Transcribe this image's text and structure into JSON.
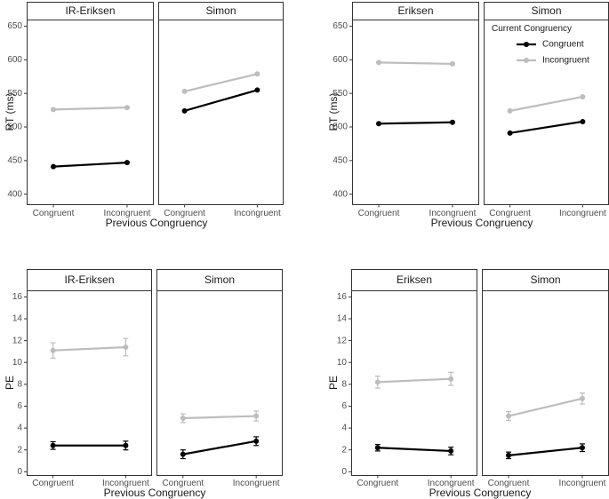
{
  "chart_data": [
    {
      "type": "line",
      "ylabel": "RT (ms)",
      "xlabel": "Previous Congruency",
      "ylim": [
        385,
        660
      ],
      "yticks": [
        400,
        450,
        500,
        550,
        600,
        650
      ],
      "panels": [
        {
          "title": "IR-Eriksen",
          "categories": [
            "Congruent",
            "Incongruent"
          ],
          "series": [
            {
              "series_key": "congruent",
              "values": [
                441,
                447
              ]
            },
            {
              "series_key": "incongruent",
              "values": [
                526,
                529
              ]
            }
          ]
        },
        {
          "title": "Simon",
          "categories": [
            "Congruent",
            "Incongruent"
          ],
          "series": [
            {
              "series_key": "congruent",
              "values": [
                524,
                555
              ]
            },
            {
              "series_key": "incongruent",
              "values": [
                553,
                579
              ]
            }
          ]
        }
      ]
    },
    {
      "type": "line",
      "ylabel": "RT (ms)",
      "xlabel": "Previous Congruency",
      "ylim": [
        385,
        660
      ],
      "yticks": [
        400,
        450,
        500,
        550,
        600,
        650
      ],
      "legend": {
        "title": "Current Congruency",
        "placement": "inside top-right",
        "entries": [
          {
            "series_key": "congruent",
            "label": "Congruent"
          },
          {
            "series_key": "incongruent",
            "label": "Incongruent"
          }
        ]
      },
      "panels": [
        {
          "title": "Eriksen",
          "categories": [
            "Congruent",
            "Incongruent"
          ],
          "series": [
            {
              "series_key": "congruent",
              "values": [
                505,
                507
              ]
            },
            {
              "series_key": "incongruent",
              "values": [
                596,
                594
              ]
            }
          ]
        },
        {
          "title": "Simon",
          "categories": [
            "Congruent",
            "Incongruent"
          ],
          "series": [
            {
              "series_key": "congruent",
              "values": [
                491,
                508
              ]
            },
            {
              "series_key": "incongruent",
              "values": [
                524,
                545
              ]
            }
          ]
        }
      ]
    },
    {
      "type": "line",
      "ylabel": "PE",
      "xlabel": "Previous Congruency",
      "ylim": [
        -0.3,
        16.6
      ],
      "yticks": [
        0,
        2,
        4,
        6,
        8,
        10,
        12,
        14,
        16
      ],
      "panels": [
        {
          "title": "IR-Eriksen",
          "categories": [
            "Congruent",
            "Incongruent"
          ],
          "series": [
            {
              "series_key": "congruent",
              "values": [
                2.4,
                2.4
              ],
              "errors": [
                0.35,
                0.4
              ]
            },
            {
              "series_key": "incongruent",
              "values": [
                11.1,
                11.4
              ],
              "errors": [
                0.7,
                0.8
              ]
            }
          ]
        },
        {
          "title": "Simon",
          "categories": [
            "Congruent",
            "Incongruent"
          ],
          "series": [
            {
              "series_key": "congruent",
              "values": [
                1.6,
                2.8
              ],
              "errors": [
                0.4,
                0.4
              ]
            },
            {
              "series_key": "incongruent",
              "values": [
                4.9,
                5.1
              ],
              "errors": [
                0.4,
                0.45
              ]
            }
          ]
        }
      ]
    },
    {
      "type": "line",
      "ylabel": "PE",
      "xlabel": "Previous Congruency",
      "ylim": [
        -0.3,
        16.6
      ],
      "yticks": [
        0,
        2,
        4,
        6,
        8,
        10,
        12,
        14,
        16
      ],
      "panels": [
        {
          "title": "Eriksen",
          "categories": [
            "Congruent",
            "Incongruent"
          ],
          "series": [
            {
              "series_key": "congruent",
              "values": [
                2.2,
                1.9
              ],
              "errors": [
                0.3,
                0.35
              ]
            },
            {
              "series_key": "incongruent",
              "values": [
                8.2,
                8.5
              ],
              "errors": [
                0.55,
                0.6
              ]
            }
          ]
        },
        {
          "title": "Simon",
          "categories": [
            "Congruent",
            "Incongruent"
          ],
          "series": [
            {
              "series_key": "congruent",
              "values": [
                1.5,
                2.2
              ],
              "errors": [
                0.3,
                0.35
              ]
            },
            {
              "series_key": "incongruent",
              "values": [
                5.1,
                6.7
              ],
              "errors": [
                0.4,
                0.5
              ]
            }
          ]
        }
      ]
    }
  ],
  "colors": {
    "congruent": "#000000",
    "incongruent": "#bdbdbd"
  }
}
